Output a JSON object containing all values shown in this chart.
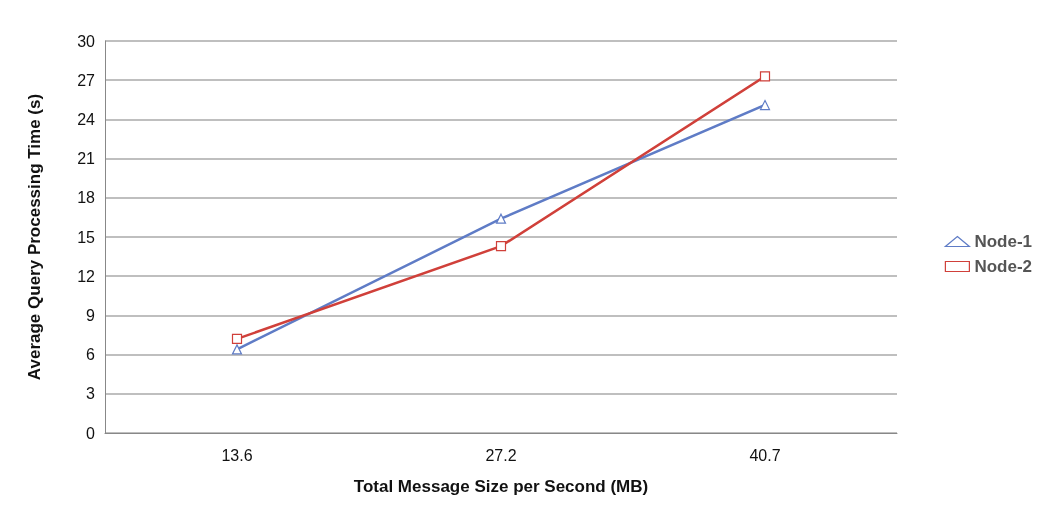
{
  "chart_data": {
    "type": "line",
    "xlabel": "Total Message Size per Second (MB)",
    "ylabel": "Average Query Processing Time (s)",
    "categories": [
      "13.6",
      "27.2",
      "40.7"
    ],
    "series": [
      {
        "name": "Node-1",
        "color": "#5f7cc6",
        "marker": "triangle",
        "values": [
          6.4,
          16.4,
          25.1
        ]
      },
      {
        "name": "Node-2",
        "color": "#d0403a",
        "marker": "square",
        "values": [
          7.2,
          14.3,
          27.3
        ]
      }
    ],
    "ylim": [
      0,
      30
    ],
    "yticks": [
      0,
      3,
      6,
      9,
      12,
      15,
      18,
      21,
      24,
      27,
      30
    ],
    "grid": "y",
    "legend": "right",
    "line_style": "solid"
  }
}
